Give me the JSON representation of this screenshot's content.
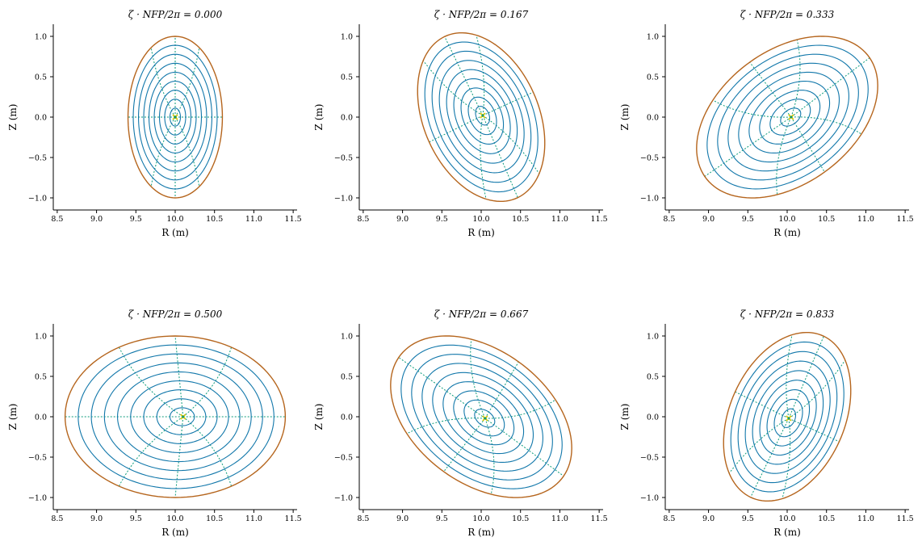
{
  "figure": {
    "colors": {
      "flux_surface": "#1177aa",
      "boundary": "#b5651d",
      "theta_line": "#0a9b7a",
      "axis_marker": "#d9c600"
    },
    "xlabel": "R (m)",
    "ylabel": "Z (m)"
  },
  "chart_data": [
    {
      "type": "line",
      "title": "ζ · NFP/2π = 0.000",
      "xlabel": "R (m)",
      "ylabel": "Z (m)",
      "xlim": [
        8.45,
        11.55
      ],
      "ylim": [
        -1.15,
        1.15
      ],
      "xticks": [
        "8.5",
        "9.0",
        "9.5",
        "10.0",
        "10.5",
        "11.0",
        "11.5"
      ],
      "yticks": [
        "1.0",
        "0.5",
        "0.0",
        "−0.5",
        "−1.0"
      ],
      "grid": false,
      "surfaces": {
        "count": 9,
        "boundary": {
          "center_R": 10.0,
          "center_Z": 0.0,
          "a": 0.6,
          "b": 1.0,
          "tilt_deg": 0
        },
        "axis": {
          "R": 10.0,
          "Z": 0.0
        }
      }
    },
    {
      "type": "line",
      "title": "ζ · NFP/2π = 0.167",
      "xlabel": "R (m)",
      "ylabel": "Z (m)",
      "xlim": [
        8.45,
        11.55
      ],
      "ylim": [
        -1.15,
        1.15
      ],
      "xticks": [
        "8.5",
        "9.0",
        "9.5",
        "10.0",
        "10.5",
        "11.0",
        "11.5"
      ],
      "yticks": [
        "1.0",
        "0.5",
        "0.0",
        "−0.5",
        "−1.0"
      ],
      "grid": false,
      "surfaces": {
        "count": 9,
        "boundary": {
          "center_R": 10.0,
          "center_Z": 0.0,
          "a": 0.73,
          "b": 1.1,
          "tilt_deg": 25
        },
        "axis": {
          "R": 10.02,
          "Z": 0.02
        }
      }
    },
    {
      "type": "line",
      "title": "ζ · NFP/2π = 0.333",
      "xlabel": "R (m)",
      "ylabel": "Z (m)",
      "xlim": [
        8.45,
        11.55
      ],
      "ylim": [
        -1.15,
        1.15
      ],
      "xticks": [
        "8.5",
        "9.0",
        "9.5",
        "10.0",
        "10.5",
        "11.0",
        "11.5"
      ],
      "yticks": [
        "1.0",
        "0.5",
        "0.0",
        "−0.5",
        "−1.0"
      ],
      "grid": false,
      "surfaces": {
        "count": 9,
        "boundary": {
          "center_R": 10.0,
          "center_Z": 0.0,
          "a": 1.28,
          "b": 0.83,
          "tilt_deg": 35
        },
        "axis": {
          "R": 10.05,
          "Z": 0.0
        }
      }
    },
    {
      "type": "line",
      "title": "ζ · NFP/2π = 0.500",
      "xlabel": "R (m)",
      "ylabel": "Z (m)",
      "xlim": [
        8.45,
        11.55
      ],
      "ylim": [
        -1.15,
        1.15
      ],
      "xticks": [
        "8.5",
        "9.0",
        "9.5",
        "10.0",
        "10.5",
        "11.0",
        "11.5"
      ],
      "yticks": [
        "1.0",
        "0.5",
        "0.0",
        "−0.5",
        "−1.0"
      ],
      "grid": false,
      "surfaces": {
        "count": 9,
        "boundary": {
          "center_R": 10.0,
          "center_Z": 0.0,
          "a": 1.4,
          "b": 1.0,
          "tilt_deg": 0
        },
        "axis": {
          "R": 10.1,
          "Z": 0.0
        }
      }
    },
    {
      "type": "line",
      "title": "ζ · NFP/2π = 0.667",
      "xlabel": "R (m)",
      "ylabel": "Z (m)",
      "xlim": [
        8.45,
        11.55
      ],
      "ylim": [
        -1.15,
        1.15
      ],
      "xticks": [
        "8.5",
        "9.0",
        "9.5",
        "10.0",
        "10.5",
        "11.0",
        "11.5"
      ],
      "yticks": [
        "1.0",
        "0.5",
        "0.0",
        "−0.5",
        "−1.0"
      ],
      "grid": false,
      "surfaces": {
        "count": 9,
        "boundary": {
          "center_R": 10.0,
          "center_Z": 0.0,
          "a": 1.28,
          "b": 0.83,
          "tilt_deg": -35
        },
        "axis": {
          "R": 10.05,
          "Z": -0.02
        }
      }
    },
    {
      "type": "line",
      "title": "ζ · NFP/2π = 0.833",
      "xlabel": "R (m)",
      "ylabel": "Z (m)",
      "xlim": [
        8.45,
        11.55
      ],
      "ylim": [
        -1.15,
        1.15
      ],
      "xticks": [
        "8.5",
        "9.0",
        "9.5",
        "10.0",
        "10.5",
        "11.0",
        "11.5"
      ],
      "yticks": [
        "1.0",
        "0.5",
        "0.0",
        "−0.5",
        "−1.0"
      ],
      "grid": false,
      "surfaces": {
        "count": 9,
        "boundary": {
          "center_R": 10.0,
          "center_Z": 0.0,
          "a": 0.73,
          "b": 1.1,
          "tilt_deg": -25
        },
        "axis": {
          "R": 10.02,
          "Z": -0.02
        }
      }
    }
  ]
}
